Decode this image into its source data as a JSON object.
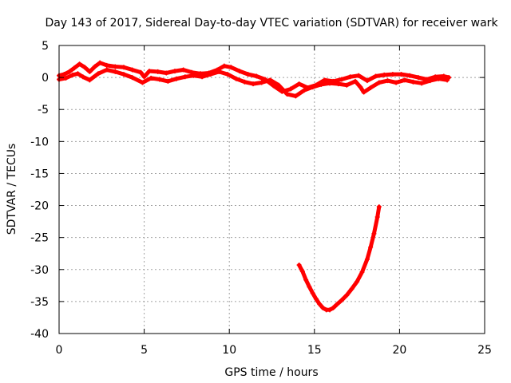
{
  "chart_data": {
    "type": "scatter",
    "title": "Day 143 of 2017, Sidereal Day-to-day VTEC variation (SDTVAR) for receiver wark",
    "xlabel": "GPS time / hours",
    "ylabel": "SDTVAR / TECUs",
    "xlim": [
      0,
      25
    ],
    "ylim": [
      -40,
      5
    ],
    "x_ticks": [
      0,
      5,
      10,
      15,
      20,
      25
    ],
    "y_ticks": [
      5,
      0,
      -5,
      -10,
      -15,
      -20,
      -25,
      -30,
      -35,
      -40
    ],
    "grid": true,
    "legend": "none",
    "colors": {
      "series": "#ff0000",
      "grid": "#a0a0a0",
      "axes": "#000000"
    },
    "series": [
      {
        "name": "band-1",
        "points": [
          [
            0.0,
            0.3
          ],
          [
            0.3,
            0.5
          ],
          [
            0.6,
            0.9
          ],
          [
            0.9,
            1.5
          ],
          [
            1.2,
            2.1
          ],
          [
            1.5,
            1.6
          ],
          [
            1.8,
            0.9
          ],
          [
            2.1,
            1.7
          ],
          [
            2.4,
            2.3
          ],
          [
            2.8,
            1.9
          ],
          [
            3.3,
            1.7
          ],
          [
            3.8,
            1.6
          ],
          [
            4.3,
            1.2
          ],
          [
            4.8,
            0.8
          ],
          [
            5.0,
            0.1
          ],
          [
            5.3,
            1.0
          ],
          [
            5.8,
            0.9
          ],
          [
            6.3,
            0.7
          ],
          [
            6.8,
            1.0
          ],
          [
            7.3,
            1.2
          ],
          [
            7.8,
            0.8
          ],
          [
            8.3,
            0.6
          ],
          [
            8.8,
            0.7
          ],
          [
            9.3,
            1.2
          ],
          [
            9.7,
            1.8
          ],
          [
            10.1,
            1.6
          ],
          [
            10.6,
            1.0
          ],
          [
            11.1,
            0.5
          ],
          [
            11.6,
            0.2
          ],
          [
            12.1,
            -0.3
          ],
          [
            12.6,
            -1.3
          ],
          [
            13.1,
            -2.2
          ],
          [
            13.6,
            -1.8
          ],
          [
            14.1,
            -1.0
          ],
          [
            14.6,
            -1.6
          ],
          [
            15.1,
            -1.2
          ],
          [
            15.6,
            -0.4
          ],
          [
            16.1,
            -0.6
          ],
          [
            16.6,
            -0.3
          ],
          [
            17.1,
            0.1
          ],
          [
            17.6,
            0.3
          ],
          [
            18.1,
            -0.5
          ],
          [
            18.6,
            0.2
          ],
          [
            19.1,
            0.4
          ],
          [
            19.6,
            0.5
          ],
          [
            20.1,
            0.5
          ],
          [
            20.6,
            0.3
          ],
          [
            21.1,
            0.0
          ],
          [
            21.6,
            -0.3
          ],
          [
            22.1,
            0.1
          ],
          [
            22.6,
            0.2
          ],
          [
            22.9,
            0.0
          ]
        ]
      },
      {
        "name": "band-2",
        "points": [
          [
            0.0,
            -0.3
          ],
          [
            0.4,
            -0.1
          ],
          [
            0.8,
            0.4
          ],
          [
            1.1,
            0.6
          ],
          [
            1.4,
            0.1
          ],
          [
            1.8,
            -0.4
          ],
          [
            2.3,
            0.6
          ],
          [
            2.8,
            1.2
          ],
          [
            3.3,
            0.9
          ],
          [
            3.8,
            0.5
          ],
          [
            4.3,
            0.0
          ],
          [
            4.9,
            -0.8
          ],
          [
            5.4,
            -0.1
          ],
          [
            5.9,
            -0.3
          ],
          [
            6.4,
            -0.6
          ],
          [
            6.9,
            -0.2
          ],
          [
            7.4,
            0.1
          ],
          [
            7.9,
            0.3
          ],
          [
            8.4,
            0.1
          ],
          [
            8.9,
            0.5
          ],
          [
            9.4,
            0.9
          ],
          [
            9.9,
            0.5
          ],
          [
            10.4,
            -0.2
          ],
          [
            10.9,
            -0.7
          ],
          [
            11.4,
            -1.0
          ],
          [
            11.9,
            -0.8
          ],
          [
            12.4,
            -0.4
          ],
          [
            12.9,
            -1.2
          ],
          [
            13.4,
            -2.6
          ],
          [
            13.9,
            -2.9
          ],
          [
            14.4,
            -2.0
          ],
          [
            14.9,
            -1.5
          ],
          [
            15.4,
            -1.1
          ],
          [
            15.9,
            -0.9
          ],
          [
            16.4,
            -1.0
          ],
          [
            16.9,
            -1.2
          ],
          [
            17.4,
            -0.6
          ],
          [
            17.7,
            -1.5
          ],
          [
            17.9,
            -2.3
          ],
          [
            18.3,
            -1.6
          ],
          [
            18.8,
            -0.8
          ],
          [
            19.3,
            -0.5
          ],
          [
            19.8,
            -0.8
          ],
          [
            20.3,
            -0.4
          ],
          [
            20.8,
            -0.7
          ],
          [
            21.3,
            -0.9
          ],
          [
            21.8,
            -0.5
          ],
          [
            22.3,
            -0.2
          ],
          [
            22.8,
            -0.4
          ]
        ]
      },
      {
        "name": "dip",
        "points": [
          [
            14.1,
            -29.3
          ],
          [
            14.3,
            -30.3
          ],
          [
            14.5,
            -31.6
          ],
          [
            14.7,
            -32.7
          ],
          [
            14.9,
            -33.7
          ],
          [
            15.1,
            -34.6
          ],
          [
            15.3,
            -35.4
          ],
          [
            15.5,
            -36.0
          ],
          [
            15.7,
            -36.3
          ],
          [
            15.9,
            -36.3
          ],
          [
            16.1,
            -36.0
          ],
          [
            16.3,
            -35.5
          ],
          [
            16.6,
            -34.8
          ],
          [
            16.9,
            -34.0
          ],
          [
            17.2,
            -33.0
          ],
          [
            17.5,
            -31.9
          ],
          [
            17.8,
            -30.4
          ],
          [
            18.1,
            -28.4
          ],
          [
            18.3,
            -26.5
          ],
          [
            18.5,
            -24.4
          ],
          [
            18.7,
            -21.8
          ],
          [
            18.8,
            -20.2
          ]
        ]
      }
    ]
  }
}
